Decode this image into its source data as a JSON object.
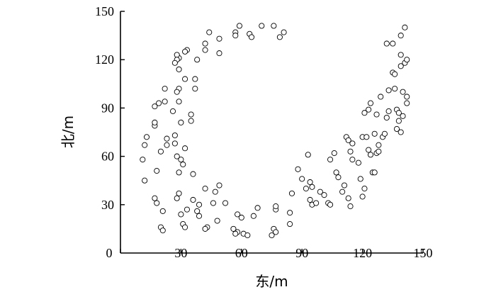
{
  "chart_data": {
    "type": "scatter",
    "xlabel": "东/m",
    "ylabel": "北/m",
    "xlim": [
      0,
      150
    ],
    "ylim": [
      0,
      150
    ],
    "xticks": [
      0,
      30,
      60,
      90,
      120,
      150
    ],
    "yticks": [
      30,
      60,
      90,
      120,
      150
    ],
    "grid": false,
    "marker": "open-circle",
    "points": [
      [
        59,
        141
      ],
      [
        70,
        141
      ],
      [
        76,
        141
      ],
      [
        79,
        134
      ],
      [
        81,
        137
      ],
      [
        64,
        136
      ],
      [
        65,
        134
      ],
      [
        57,
        137
      ],
      [
        57,
        135
      ],
      [
        49,
        133
      ],
      [
        49,
        124
      ],
      [
        44,
        137
      ],
      [
        42,
        130
      ],
      [
        42,
        126
      ],
      [
        33,
        126
      ],
      [
        32,
        125
      ],
      [
        29,
        121
      ],
      [
        29,
        114
      ],
      [
        28,
        123
      ],
      [
        28,
        120
      ],
      [
        27,
        118
      ],
      [
        38,
        120
      ],
      [
        37,
        108
      ],
      [
        37,
        102
      ],
      [
        32,
        108
      ],
      [
        29,
        102
      ],
      [
        28,
        100
      ],
      [
        29,
        94
      ],
      [
        26,
        88
      ],
      [
        22,
        102
      ],
      [
        22,
        94
      ],
      [
        19,
        93
      ],
      [
        17,
        91
      ],
      [
        17,
        79
      ],
      [
        17,
        81
      ],
      [
        13,
        72
      ],
      [
        12,
        67
      ],
      [
        23,
        71
      ],
      [
        23,
        67
      ],
      [
        27,
        73
      ],
      [
        27,
        68
      ],
      [
        35,
        86
      ],
      [
        35,
        82
      ],
      [
        30,
        81
      ],
      [
        32,
        65
      ],
      [
        30,
        58
      ],
      [
        31,
        55
      ],
      [
        28,
        60
      ],
      [
        20,
        63
      ],
      [
        11,
        58
      ],
      [
        12,
        45
      ],
      [
        18,
        51
      ],
      [
        29,
        50
      ],
      [
        36,
        49
      ],
      [
        29,
        37
      ],
      [
        28,
        34
      ],
      [
        17,
        34
      ],
      [
        18,
        31
      ],
      [
        21,
        26
      ],
      [
        36,
        33
      ],
      [
        39,
        30
      ],
      [
        38,
        26
      ],
      [
        39,
        23
      ],
      [
        33,
        27
      ],
      [
        30,
        24
      ],
      [
        31,
        18
      ],
      [
        32,
        16
      ],
      [
        42,
        40
      ],
      [
        49,
        42
      ],
      [
        43,
        16
      ],
      [
        42,
        15
      ],
      [
        20,
        16
      ],
      [
        21,
        14
      ],
      [
        52,
        31
      ],
      [
        46,
        31
      ],
      [
        48,
        20
      ],
      [
        47,
        38
      ],
      [
        56,
        15
      ],
      [
        58,
        13
      ],
      [
        57,
        12
      ],
      [
        61,
        12
      ],
      [
        63,
        11
      ],
      [
        58,
        24
      ],
      [
        60,
        22
      ],
      [
        66,
        23
      ],
      [
        68,
        28
      ],
      [
        76,
        15
      ],
      [
        77,
        13
      ],
      [
        75,
        11
      ],
      [
        77,
        27
      ],
      [
        77,
        29
      ],
      [
        84,
        18
      ],
      [
        84,
        25
      ],
      [
        85,
        37
      ],
      [
        88,
        52
      ],
      [
        90,
        46
      ],
      [
        94,
        44
      ],
      [
        95,
        41
      ],
      [
        92,
        40
      ],
      [
        93,
        61
      ],
      [
        94,
        33
      ],
      [
        95,
        30
      ],
      [
        97,
        31
      ],
      [
        99,
        38
      ],
      [
        101,
        36
      ],
      [
        103,
        31
      ],
      [
        104,
        30
      ],
      [
        104,
        58
      ],
      [
        106,
        62
      ],
      [
        107,
        50
      ],
      [
        108,
        47
      ],
      [
        110,
        38
      ],
      [
        111,
        42
      ],
      [
        114,
        29
      ],
      [
        113,
        34
      ],
      [
        112,
        72
      ],
      [
        113,
        70
      ],
      [
        115,
        68
      ],
      [
        115,
        58
      ],
      [
        114,
        63
      ],
      [
        118,
        56
      ],
      [
        119,
        46
      ],
      [
        121,
        40
      ],
      [
        120,
        35
      ],
      [
        120,
        72
      ],
      [
        122,
        72
      ],
      [
        121,
        87
      ],
      [
        123,
        89
      ],
      [
        124,
        93
      ],
      [
        123,
        64
      ],
      [
        124,
        61
      ],
      [
        125,
        50
      ],
      [
        126,
        50
      ],
      [
        127,
        62
      ],
      [
        126,
        74
      ],
      [
        127,
        86
      ],
      [
        128,
        67
      ],
      [
        128,
        63
      ],
      [
        129,
        97
      ],
      [
        130,
        72
      ],
      [
        131,
        74
      ],
      [
        133,
        88
      ],
      [
        132,
        84
      ],
      [
        133,
        101
      ],
      [
        135,
        112
      ],
      [
        136,
        111
      ],
      [
        136,
        102
      ],
      [
        137,
        89
      ],
      [
        138,
        87
      ],
      [
        138,
        82
      ],
      [
        137,
        77
      ],
      [
        139,
        75
      ],
      [
        140,
        85
      ],
      [
        140,
        100
      ],
      [
        139,
        116
      ],
      [
        141,
        118
      ],
      [
        142,
        120
      ],
      [
        142,
        97
      ],
      [
        142,
        93
      ],
      [
        139,
        123
      ],
      [
        135,
        130
      ],
      [
        139,
        135
      ],
      [
        141,
        140
      ],
      [
        132,
        130
      ]
    ]
  }
}
